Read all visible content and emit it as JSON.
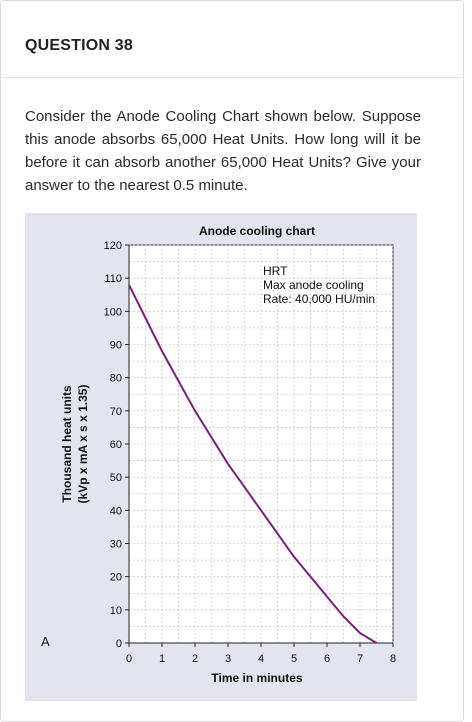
{
  "question": {
    "title": "QUESTION 38",
    "text": "Consider the Anode Cooling Chart shown below. Suppose this anode absorbs 65,000 Heat Units.  How long will it be before it can absorb another 65,000 Heat Units? Give your answer to the nearest 0.5 minute."
  },
  "chart_data": {
    "type": "line",
    "title": "Anode cooling chart",
    "xlabel": "Time in minutes",
    "ylabel_line1": "Thousand heat units",
    "ylabel_line2": "(kVp x mA x s x 1.35)",
    "panel_label": "A",
    "xlim": [
      0,
      8
    ],
    "ylim": [
      0,
      120
    ],
    "xticks": [
      0,
      1,
      2,
      3,
      4,
      5,
      6,
      7,
      8
    ],
    "yticks": [
      0,
      10,
      20,
      30,
      40,
      50,
      60,
      70,
      80,
      90,
      100,
      110,
      120
    ],
    "annotation": [
      "HRT",
      "Max anode cooling",
      "Rate: 40,000 HU/min"
    ],
    "grid": true,
    "line_color": "#7a1f7a",
    "series": [
      {
        "x": [
          0,
          0.5,
          1,
          1.5,
          2,
          2.5,
          3,
          3.5,
          4,
          4.5,
          5,
          5.5,
          6,
          6.5,
          7,
          7.5
        ],
        "values": [
          108,
          98,
          88,
          79,
          70,
          62,
          54,
          47,
          40,
          33,
          26,
          20,
          14,
          8,
          3,
          0
        ]
      }
    ]
  }
}
